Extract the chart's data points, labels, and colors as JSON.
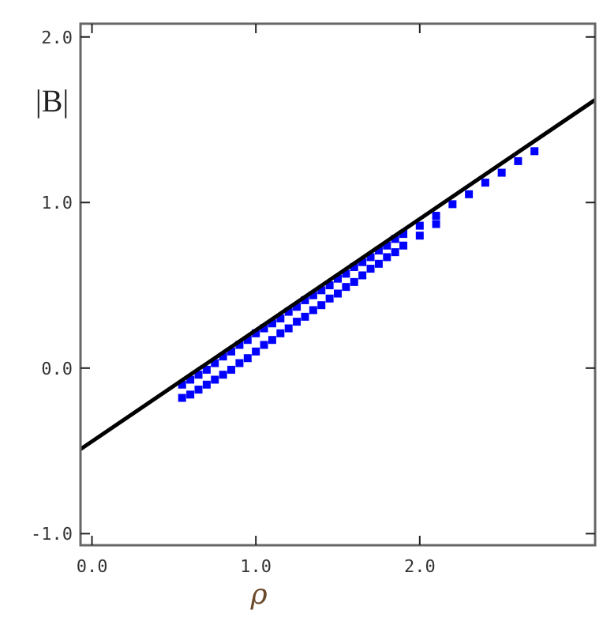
{
  "chart_data": {
    "type": "scatter",
    "xlabel": "ρ",
    "ylabel": "|B|",
    "xlim": [
      -0.07,
      3.07
    ],
    "ylim": [
      -1.07,
      2.08
    ],
    "xticks": [
      {
        "value": 0,
        "label": "0.0"
      },
      {
        "value": 1,
        "label": "1.0"
      },
      {
        "value": 2,
        "label": "2.0"
      }
    ],
    "yticks": [
      {
        "value": -1,
        "label": "-1.0"
      },
      {
        "value": 0,
        "label": "0.0"
      },
      {
        "value": 1,
        "label": "1.0"
      },
      {
        "value": 2,
        "label": "2.0"
      }
    ],
    "grid": false,
    "series": [
      {
        "color": "#0000ff",
        "marker": "square",
        "x": [
          0.55,
          0.55,
          0.6,
          0.6,
          0.65,
          0.65,
          0.7,
          0.7,
          0.75,
          0.75,
          0.8,
          0.8,
          0.85,
          0.85,
          0.9,
          0.9,
          0.95,
          0.95,
          1.0,
          1.0,
          1.05,
          1.05,
          1.1,
          1.1,
          1.15,
          1.15,
          1.2,
          1.2,
          1.25,
          1.25,
          1.3,
          1.3,
          1.35,
          1.35,
          1.4,
          1.4,
          1.45,
          1.45,
          1.5,
          1.5,
          1.55,
          1.55,
          1.6,
          1.6,
          1.65,
          1.65,
          1.7,
          1.7,
          1.75,
          1.75,
          1.8,
          1.8,
          1.85,
          1.85,
          1.9,
          1.9,
          2.0,
          2.0,
          2.1,
          2.1,
          2.2,
          2.3,
          2.4,
          2.5,
          2.6,
          2.7
        ],
        "values": [
          -0.1,
          -0.18,
          -0.07,
          -0.16,
          -0.04,
          -0.13,
          -0.01,
          -0.1,
          0.03,
          -0.07,
          0.07,
          -0.04,
          0.1,
          -0.01,
          0.14,
          0.03,
          0.17,
          0.06,
          0.21,
          0.1,
          0.24,
          0.14,
          0.27,
          0.17,
          0.3,
          0.21,
          0.34,
          0.24,
          0.37,
          0.28,
          0.41,
          0.31,
          0.44,
          0.35,
          0.47,
          0.38,
          0.5,
          0.42,
          0.54,
          0.45,
          0.57,
          0.49,
          0.61,
          0.52,
          0.64,
          0.56,
          0.67,
          0.6,
          0.71,
          0.63,
          0.74,
          0.67,
          0.78,
          0.7,
          0.81,
          0.74,
          0.86,
          0.8,
          0.92,
          0.87,
          0.99,
          1.05,
          1.12,
          1.18,
          1.25,
          1.31
        ]
      },
      {
        "type": "line",
        "color": "#000000",
        "marker": "none",
        "line_style": "solid",
        "x": [
          -0.07,
          3.07
        ],
        "values": [
          -0.49,
          1.62
        ]
      }
    ]
  }
}
